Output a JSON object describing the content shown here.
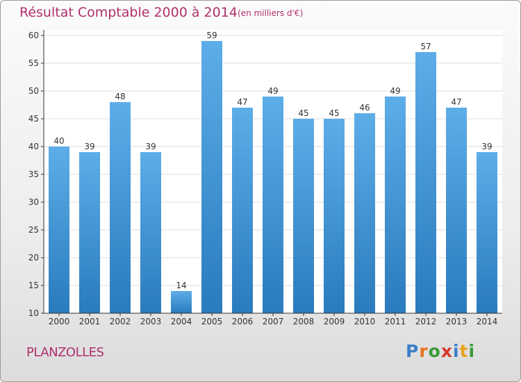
{
  "header": {
    "title": "Résultat Comptable 2000 à 2014",
    "unit": "(en milliers d'€)"
  },
  "commune": "PLANZOLLES",
  "logo": {
    "text": "Proxiti",
    "letters": [
      "P",
      "r",
      "o",
      "x",
      "i",
      "t",
      "i"
    ]
  },
  "colors": {
    "bar_top": "#5dade8",
    "bar_bottom": "#2a7bbd",
    "title": "#b0306c",
    "axis": "#333333",
    "grid": "#dddddd"
  },
  "chart_data": {
    "type": "bar",
    "title": "Résultat Comptable 2000 à 2014",
    "xlabel": "",
    "ylabel": "",
    "categories": [
      "2000",
      "2001",
      "2002",
      "2003",
      "2004",
      "2005",
      "2006",
      "2007",
      "2008",
      "2009",
      "2010",
      "2011",
      "2012",
      "2013",
      "2014"
    ],
    "values": [
      40,
      39,
      48,
      39,
      14,
      59,
      47,
      49,
      45,
      45,
      46,
      49,
      57,
      47,
      39
    ],
    "ylim": [
      10,
      60
    ],
    "yticks": [
      10,
      15,
      20,
      25,
      30,
      35,
      40,
      45,
      50,
      55,
      60
    ],
    "grid": true,
    "legend": "none"
  }
}
